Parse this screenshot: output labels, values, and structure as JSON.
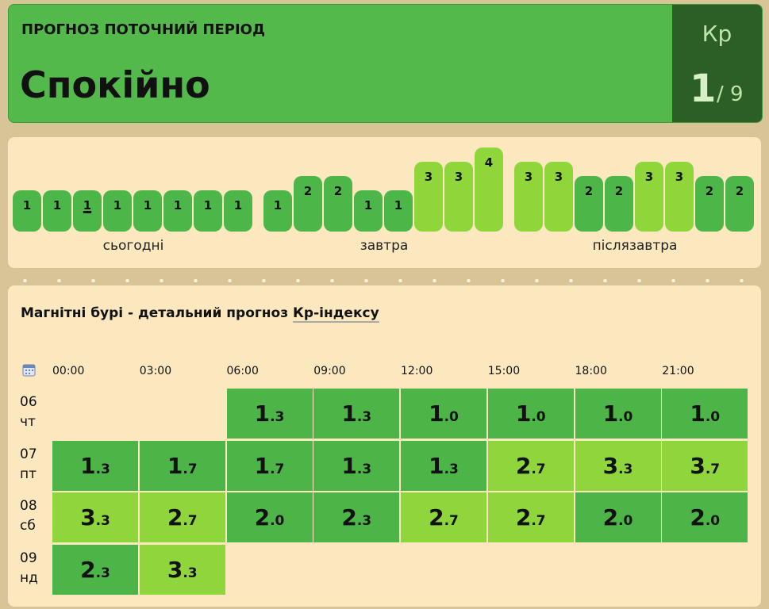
{
  "header": {
    "label": "ПРОГНОЗ ПОТОЧНИЙ ПЕРІОД",
    "status": "Спокійно",
    "kp_label": "Кр",
    "kp_value": "1",
    "kp_max": "/ 9"
  },
  "bars": [
    {
      "day": "сьогодні",
      "values": [
        1,
        1,
        1,
        1,
        1,
        1,
        1,
        1
      ]
    },
    {
      "day": "завтра",
      "values": [
        1,
        2,
        2,
        1,
        1,
        3,
        3,
        4
      ]
    },
    {
      "day": "післязавтра",
      "values": [
        3,
        3,
        2,
        2,
        3,
        3,
        2,
        2
      ]
    }
  ],
  "table": {
    "title": "Магнітні бурі - детальний прогноз",
    "title_link": "Кр-індексу",
    "times": [
      "00:00",
      "03:00",
      "06:00",
      "09:00",
      "12:00",
      "15:00",
      "18:00",
      "21:00"
    ],
    "rows": [
      {
        "date": "06",
        "weekday": "чт",
        "cells": [
          null,
          null,
          [
            "1",
            ".3"
          ],
          [
            "1",
            ".3"
          ],
          [
            "1",
            ".0"
          ],
          [
            "1",
            ".0"
          ],
          [
            "1",
            ".0"
          ],
          [
            "1",
            ".0"
          ]
        ]
      },
      {
        "date": "07",
        "weekday": "пт",
        "cells": [
          [
            "1",
            ".3"
          ],
          [
            "1",
            ".7"
          ],
          [
            "1",
            ".7"
          ],
          [
            "1",
            ".3"
          ],
          [
            "1",
            ".3"
          ],
          [
            "2",
            ".7"
          ],
          [
            "3",
            ".3"
          ],
          [
            "3",
            ".7"
          ]
        ]
      },
      {
        "date": "08",
        "weekday": "сб",
        "cells": [
          [
            "3",
            ".3"
          ],
          [
            "2",
            ".7"
          ],
          [
            "2",
            ".0"
          ],
          [
            "2",
            ".3"
          ],
          [
            "2",
            ".7"
          ],
          [
            "2",
            ".7"
          ],
          [
            "2",
            ".0"
          ],
          [
            "2",
            ".0"
          ]
        ]
      },
      {
        "date": "09",
        "weekday": "нд",
        "cells": [
          [
            "2",
            ".3"
          ],
          [
            "3",
            ".3"
          ],
          null,
          null,
          null,
          null,
          null,
          null
        ]
      }
    ]
  }
}
